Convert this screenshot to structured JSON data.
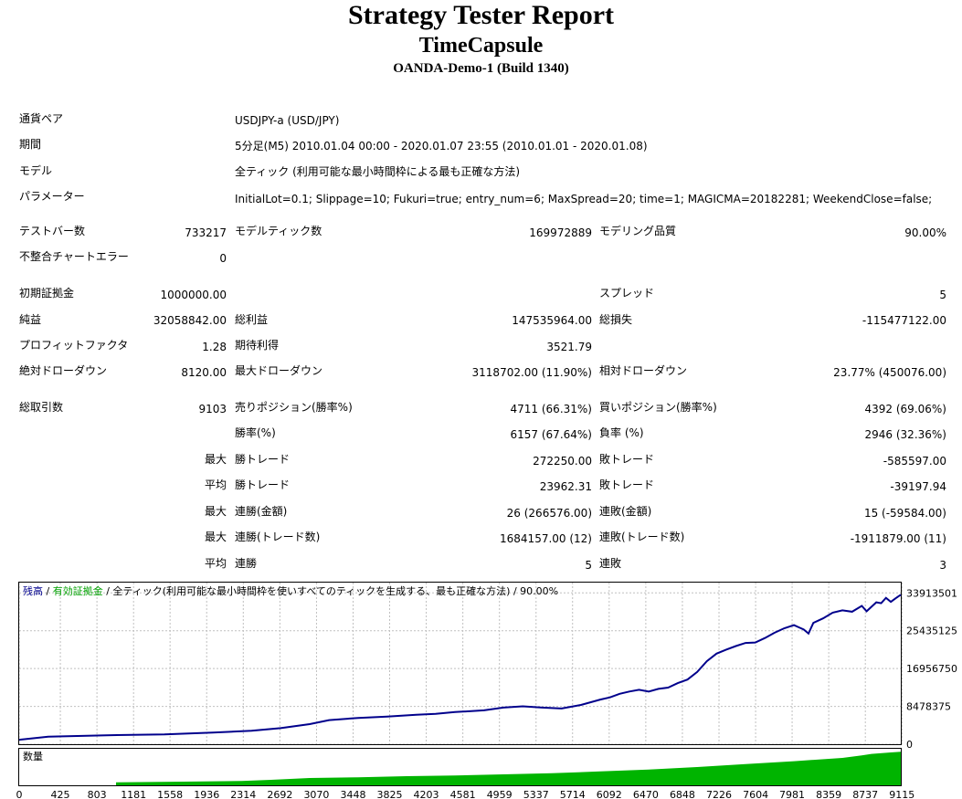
{
  "report": {
    "title": "Strategy Tester Report",
    "ea_name": "TimeCapsule",
    "server": "OANDA-Demo-1 (Build 1340)"
  },
  "settings": [
    {
      "label": "通貨ペア",
      "value": "USDJPY-a (USD/JPY)"
    },
    {
      "label": "期間",
      "value": "5分足(M5) 2010.01.04 00:00 - 2020.01.07 23:55 (2010.01.01 - 2020.01.08)"
    },
    {
      "label": "モデル",
      "value": "全ティック (利用可能な最小時間枠による最も正確な方法)"
    },
    {
      "label": "パラメーター",
      "value": "InitialLot=0.1; Slippage=10; Fukuri=true; entry_num=6; MaxSpread=20; time=1; MAGICMA=20182281; WeekendClose=false;"
    }
  ],
  "stats": {
    "bars_label": "テストバー数",
    "bars": "733217",
    "ticks_label": "モデルティック数",
    "ticks": "169972889",
    "quality_label": "モデリング品質",
    "quality": "90.00%",
    "mismatch_label": "不整合チャートエラー",
    "mismatch": "0",
    "deposit_label": "初期証拠金",
    "deposit": "1000000.00",
    "spread_label": "スプレッド",
    "spread": "5",
    "net_label": "純益",
    "net": "32058842.00",
    "gross_profit_label": "総利益",
    "gross_profit": "147535964.00",
    "gross_loss_label": "総損失",
    "gross_loss": "-115477122.00",
    "pf_label": "プロフィットファクタ",
    "pf": "1.28",
    "payoff_label": "期待利得",
    "payoff": "3521.79",
    "abs_dd_label": "絶対ドローダウン",
    "abs_dd": "8120.00",
    "max_dd_label": "最大ドローダウン",
    "max_dd": "3118702.00 (11.90%)",
    "rel_dd_label": "相対ドローダウン",
    "rel_dd": "23.77% (450076.00)",
    "trades_label": "総取引数",
    "trades": "9103",
    "short_label": "売りポジション(勝率%)",
    "short": "4711 (66.31%)",
    "long_label": "買いポジション(勝率%)",
    "long": "4392 (69.06%)",
    "win_pct_label": "勝率(%)",
    "win_pct": "6157 (67.64%)",
    "loss_pct_label": "負率 (%)",
    "loss_pct": "2946 (32.36%)",
    "p_max": "最大",
    "p_avg": "平均",
    "largest_win_label": "勝トレード",
    "largest_win": "272250.00",
    "largest_loss_label": "敗トレード",
    "largest_loss": "-585597.00",
    "avg_win_label": "勝トレード",
    "avg_win": "23962.31",
    "avg_loss_label": "敗トレード",
    "avg_loss": "-39197.94",
    "max_cons_wins_label": "連勝(金額)",
    "max_cons_wins": "26 (266576.00)",
    "max_cons_losses_label": "連敗(金額)",
    "max_cons_losses": "15 (-59584.00)",
    "max_cons_profit_label": "連勝(トレード数)",
    "max_cons_profit": "1684157.00 (12)",
    "max_cons_loss_label": "連敗(トレード数)",
    "max_cons_loss": "-1911879.00 (11)",
    "avg_cons_wins_label": "連勝",
    "avg_cons_wins": "5",
    "avg_cons_losses_label": "連敗",
    "avg_cons_losses": "3"
  },
  "chart_data": {
    "type": "line",
    "legend": {
      "balance": "残高",
      "sep": " / ",
      "equity": "有効証拠金",
      "rest": " / 全ティック(利用可能な最小時間枠を使いすべてのティックを生成する、最も正確な方法) / 90.00%"
    },
    "colors": {
      "balance": "#00008c",
      "equity": "#00a000",
      "volume": "#00b400",
      "grid": "#c0c0c0",
      "frame": "#000000"
    },
    "y_ticks": [
      33913501,
      25435125,
      16956750,
      8478375,
      0
    ],
    "ylim": [
      0,
      35000000
    ],
    "x_ticks": [
      "0",
      "425",
      "803",
      "1181",
      "1558",
      "1936",
      "2314",
      "2692",
      "3070",
      "3448",
      "3825",
      "4203",
      "4581",
      "4959",
      "5337",
      "5714",
      "6092",
      "6470",
      "6848",
      "7226",
      "7604",
      "7981",
      "8359",
      "8737",
      "9115"
    ],
    "x_tick_values": [
      0,
      425,
      803,
      1181,
      1558,
      1936,
      2314,
      2692,
      3070,
      3448,
      3825,
      4203,
      4581,
      4959,
      5337,
      5714,
      6092,
      6470,
      6848,
      7226,
      7604,
      7981,
      8359,
      8737,
      9115
    ],
    "xlim": [
      0,
      9103
    ],
    "series": [
      {
        "name": "残高",
        "x": [
          0,
          300,
          900,
          1500,
          2000,
          2400,
          2700,
          3000,
          3200,
          3500,
          3800,
          4100,
          4300,
          4500,
          4800,
          5000,
          5200,
          5400,
          5600,
          5800,
          6000,
          6100,
          6200,
          6300,
          6400,
          6500,
          6600,
          6700,
          6800,
          6900,
          7000,
          7100,
          7200,
          7300,
          7400,
          7500,
          7600,
          7700,
          7800,
          7900,
          8000,
          8050,
          8100,
          8150,
          8200,
          8300,
          8400,
          8500,
          8600,
          8700,
          8750,
          8800,
          8850,
          8900,
          8950,
          9000,
          9050,
          9103
        ],
        "y": [
          1000000,
          1700000,
          2000000,
          2200000,
          2600000,
          3000000,
          3600000,
          4500000,
          5400000,
          5900000,
          6200000,
          6600000,
          6800000,
          7200000,
          7600000,
          8200000,
          8500000,
          8200000,
          8000000,
          8800000,
          10000000,
          10500000,
          11300000,
          11800000,
          12200000,
          11800000,
          12400000,
          12700000,
          13700000,
          14500000,
          16200000,
          18600000,
          20300000,
          21200000,
          22000000,
          22700000,
          22800000,
          23800000,
          25000000,
          26000000,
          26700000,
          26200000,
          25700000,
          24800000,
          27200000,
          28200000,
          29500000,
          30000000,
          29700000,
          31000000,
          29800000,
          30800000,
          31800000,
          31600000,
          32800000,
          31900000,
          32700000,
          33500000
        ]
      }
    ],
    "volume_label": "数量",
    "volume": {
      "x": [
        1000,
        1700,
        2300,
        2600,
        3000,
        3500,
        4000,
        4500,
        5000,
        5500,
        6000,
        6500,
        7000,
        7500,
        8000,
        8500,
        8700,
        8800,
        9000,
        9103
      ],
      "y": [
        0.08,
        0.1,
        0.12,
        0.15,
        0.2,
        0.22,
        0.25,
        0.27,
        0.3,
        0.33,
        0.38,
        0.43,
        0.5,
        0.58,
        0.66,
        0.75,
        0.82,
        0.86,
        0.9,
        0.92
      ]
    }
  }
}
